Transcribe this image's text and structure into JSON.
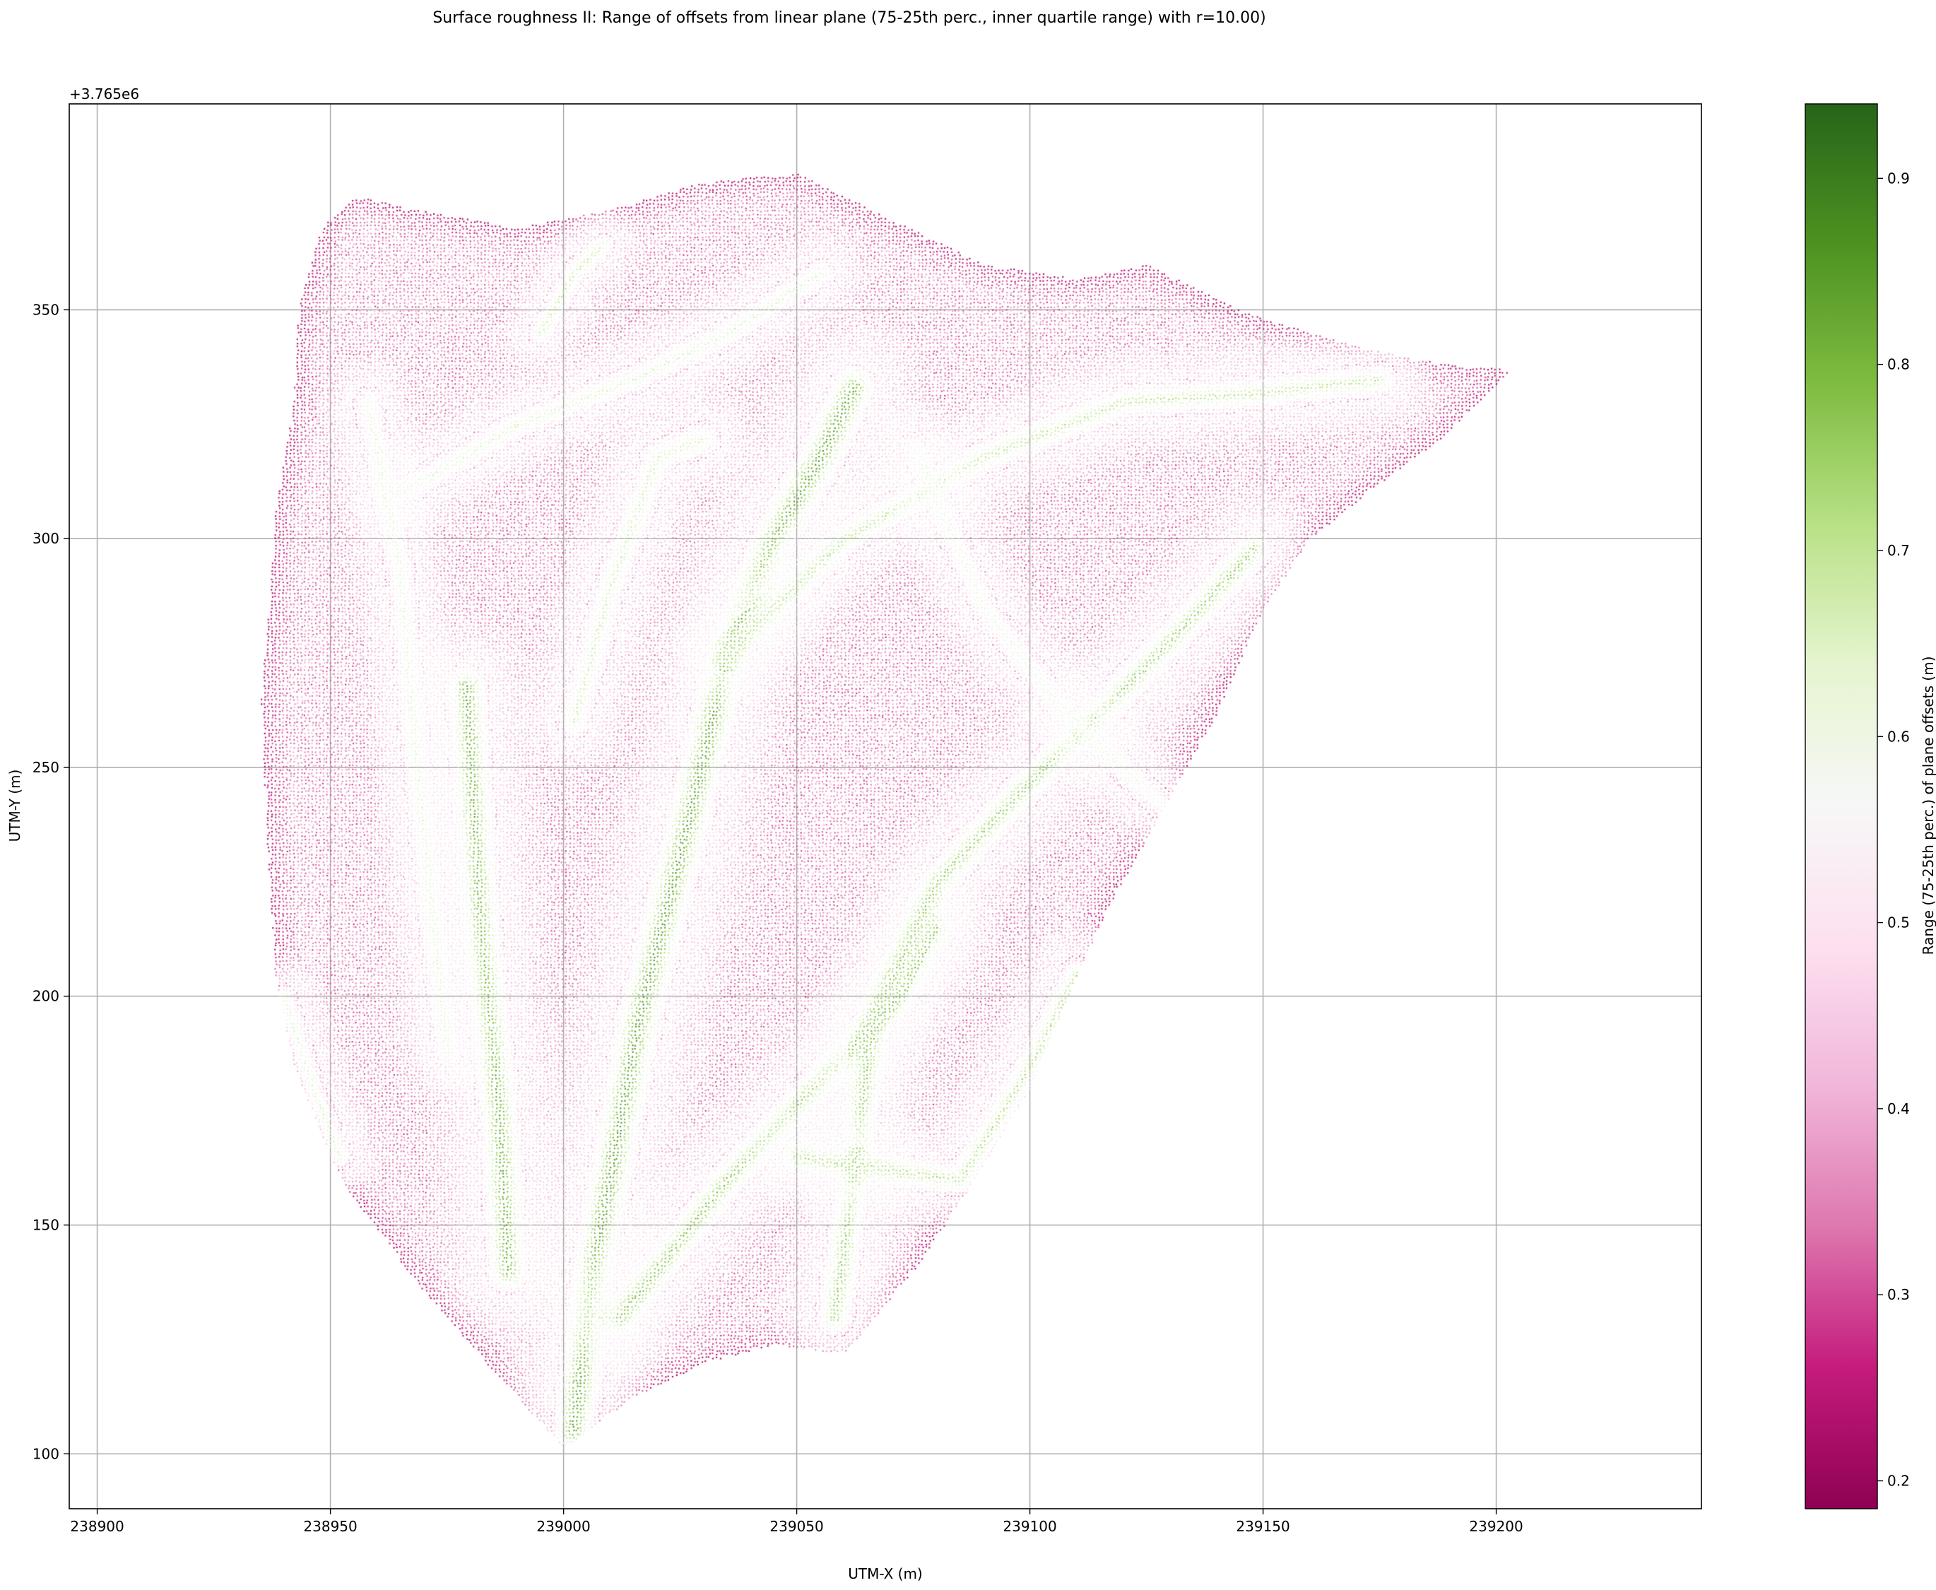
{
  "chart_data": {
    "type": "scatter",
    "title": "Surface roughness II: Range of offsets from linear plane (75-25th perc., inner quartile range) with r=10.00)",
    "xlabel": "UTM-X (m)",
    "ylabel": "UTM-Y (m)",
    "y_offset_label": "+3.765e6",
    "xlim": [
      238894,
      239244
    ],
    "ylim": [
      3765088,
      3765395
    ],
    "x_ticks": [
      238900,
      238950,
      239000,
      239050,
      239100,
      239150,
      239200
    ],
    "x_tick_labels": [
      "238900",
      "238950",
      "239000",
      "239050",
      "239100",
      "239150",
      "239200"
    ],
    "y_ticks": [
      100,
      150,
      200,
      250,
      300,
      350
    ],
    "y_tick_labels": [
      "100",
      "150",
      "200",
      "250",
      "300",
      "350"
    ],
    "grid": true,
    "colormap": "PiYG",
    "colorbar": {
      "label": "Range (75-25th perc.) of plane offsets (m)",
      "range": [
        0.185,
        0.94
      ],
      "ticks": [
        0.2,
        0.3,
        0.4,
        0.5,
        0.6,
        0.7,
        0.8,
        0.9
      ],
      "tick_labels": [
        "0.2",
        "0.3",
        "0.4",
        "0.5",
        "0.6",
        "0.7",
        "0.8",
        "0.9"
      ],
      "gradient_stops": [
        "#8e0152",
        "#c51b7d",
        "#de77ae",
        "#f1b6da",
        "#fde0ef",
        "#f7f7f7",
        "#e6f5d0",
        "#b8e186",
        "#7fbc41",
        "#4d9221",
        "#276419"
      ]
    },
    "point_cloud": {
      "description_values": "dense point cloud; value field approximated by outline + channel features",
      "outline_utm": [
        [
          238943,
          3765350
        ],
        [
          238948,
          3765368
        ],
        [
          238955,
          3765375
        ],
        [
          238968,
          3765372
        ],
        [
          238990,
          3765368
        ],
        [
          239010,
          3765372
        ],
        [
          239030,
          3765378
        ],
        [
          239050,
          3765380
        ],
        [
          239070,
          3765370
        ],
        [
          239090,
          3765360
        ],
        [
          239110,
          3765357
        ],
        [
          239125,
          3765360
        ],
        [
          239145,
          3765350
        ],
        [
          239170,
          3765342
        ],
        [
          239190,
          3765338
        ],
        [
          239203,
          3765337
        ],
        [
          239188,
          3765322
        ],
        [
          239172,
          3765310
        ],
        [
          239160,
          3765300
        ],
        [
          239150,
          3765285
        ],
        [
          239140,
          3765262
        ],
        [
          239128,
          3765240
        ],
        [
          239118,
          3765222
        ],
        [
          239110,
          3765205
        ],
        [
          239100,
          3765180
        ],
        [
          239088,
          3765160
        ],
        [
          239075,
          3765140
        ],
        [
          239060,
          3765122
        ],
        [
          239045,
          3765124
        ],
        [
          239030,
          3765120
        ],
        [
          239014,
          3765112
        ],
        [
          239000,
          3765101
        ],
        [
          238985,
          3765118
        ],
        [
          238968,
          3765138
        ],
        [
          238952,
          3765160
        ],
        [
          238942,
          3765185
        ],
        [
          238938,
          3765205
        ],
        [
          238936,
          3765240
        ],
        [
          238935,
          3765265
        ],
        [
          238937,
          3765290
        ],
        [
          238938,
          3765305
        ],
        [
          238942,
          3765330
        ]
      ],
      "background_value": 0.36,
      "edge_value": 0.24,
      "channels": [
        {
          "value": 0.86,
          "width": 5.5,
          "path": [
            [
              239002,
              3765105
            ],
            [
              239007,
              3765145
            ],
            [
              239016,
              3765195
            ],
            [
              239027,
              3765240
            ],
            [
              239035,
              3765275
            ],
            [
              239045,
              3765300
            ],
            [
              239055,
              3765318
            ],
            [
              239062,
              3765333
            ]
          ]
        },
        {
          "value": 0.84,
          "width": 5.0,
          "path": [
            [
              238988,
              3765140
            ],
            [
              238986,
              3765175
            ],
            [
              238982,
              3765215
            ],
            [
              238980,
              3765250
            ],
            [
              238979,
              3765268
            ]
          ]
        },
        {
          "value": 0.8,
          "width": 4.5,
          "path": [
            [
              239012,
              3765130
            ],
            [
              239035,
              3765160
            ],
            [
              239058,
              3765185
            ],
            [
              239072,
              3765200
            ],
            [
              239080,
              3765215
            ]
          ]
        },
        {
          "value": 0.78,
          "width": 4.5,
          "path": [
            [
              239058,
              3765130
            ],
            [
              239062,
              3765160
            ],
            [
              239066,
              3765195
            ],
            [
              239080,
              3765225
            ],
            [
              239098,
              3765245
            ],
            [
              239115,
              3765262
            ],
            [
              239132,
              3765280
            ],
            [
              239148,
              3765298
            ]
          ]
        },
        {
          "value": 0.74,
          "width": 4.0,
          "path": [
            [
              239050,
              3765165
            ],
            [
              239085,
              3765160
            ],
            [
              239100,
              3765185
            ],
            [
              239110,
              3765205
            ]
          ]
        },
        {
          "value": 0.72,
          "width": 4.0,
          "path": [
            [
              239035,
              3765275
            ],
            [
              239060,
              3765300
            ],
            [
              239090,
              3765318
            ],
            [
              239120,
              3765330
            ],
            [
              239150,
              3765332
            ],
            [
              239175,
              3765335
            ]
          ]
        },
        {
          "value": 0.68,
          "width": 4.0,
          "path": [
            [
              239002,
              3765260
            ],
            [
              239010,
              3765290
            ],
            [
              239020,
              3765318
            ],
            [
              239030,
              3765322
            ]
          ]
        },
        {
          "value": 0.66,
          "width": 3.5,
          "path": [
            [
              238965,
              3765310
            ],
            [
              238990,
              3765325
            ],
            [
              239015,
              3765335
            ],
            [
              239035,
              3765345
            ],
            [
              239055,
              3765358
            ]
          ]
        },
        {
          "value": 0.7,
          "width": 3.0,
          "path": [
            [
              238995,
              3765345
            ],
            [
              239002,
              3765358
            ],
            [
              239008,
              3765364
            ]
          ]
        },
        {
          "value": 0.66,
          "width": 3.0,
          "path": [
            [
              238940,
              3765200
            ],
            [
              238946,
              3765180
            ],
            [
              238952,
              3765165
            ]
          ]
        },
        {
          "value": 0.64,
          "width": 3.5,
          "path": [
            [
              238958,
              3765330
            ],
            [
              238965,
              3765292
            ],
            [
              238968,
              3765255
            ],
            [
              238972,
              3765215
            ],
            [
              238975,
              3765188
            ]
          ]
        },
        {
          "value": 0.62,
          "width": 3.5,
          "path": [
            [
              239075,
              3765320
            ],
            [
              239090,
              3765285
            ],
            [
              239105,
              3765265
            ],
            [
              239120,
              3765250
            ],
            [
              239135,
              3765235
            ]
          ]
        }
      ]
    }
  }
}
